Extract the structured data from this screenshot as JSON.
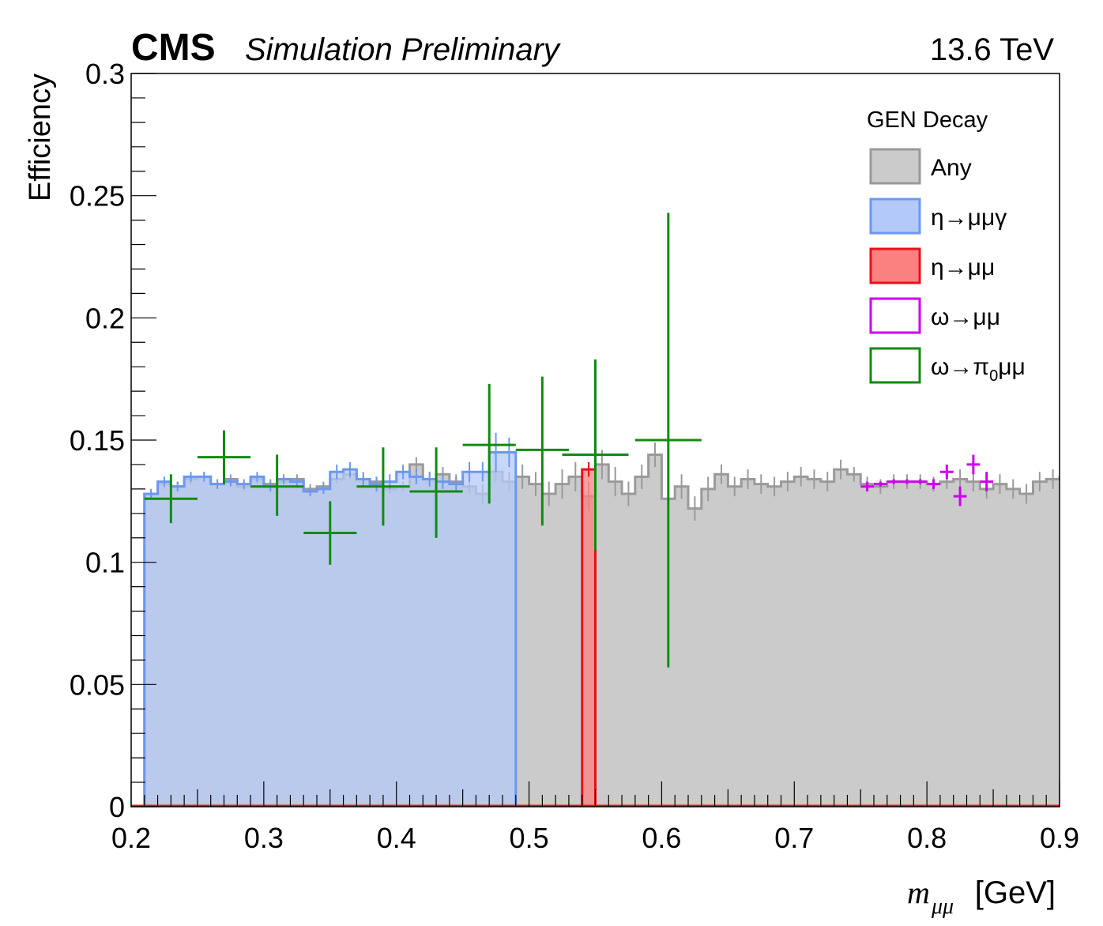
{
  "header": {
    "experiment": "CMS",
    "status": "Simulation Preliminary",
    "energy": "13.6 TeV"
  },
  "chart_data": {
    "type": "histogram",
    "ylabel": "Efficiency",
    "xlabel_symbol": "m",
    "xlabel_subscript": "μμ",
    "xlabel_unit": "[GeV]",
    "xlim": [
      0.2,
      0.9
    ],
    "ylim": [
      0,
      0.3
    ],
    "x_ticks": [
      "0.2",
      "0.3",
      "0.4",
      "0.5",
      "0.6",
      "0.7",
      "0.8",
      "0.9"
    ],
    "y_ticks": [
      "0",
      "0.05",
      "0.1",
      "0.15",
      "0.2",
      "0.25",
      "0.3"
    ],
    "legend": {
      "title": "GEN Decay",
      "position": "top-right",
      "entries": [
        {
          "label": "Any",
          "fill": "#cbcbcb",
          "stroke": "#9a9a9a"
        },
        {
          "label": "η→μμγ",
          "fill": "#b3c9f7",
          "stroke": "#6d97f0"
        },
        {
          "label": "η→μμ",
          "fill": "#fb8080",
          "stroke": "#e8101a"
        },
        {
          "label": "ω→μμ",
          "fill": "#ffffff",
          "stroke": "#cc00ee"
        },
        {
          "label": "ω→π",
          "label_sub": "0",
          "label_tail": "μμ",
          "fill": "#ffffff",
          "stroke": "#128a12"
        }
      ]
    },
    "series": [
      {
        "name": "Any",
        "style": "filled-step",
        "color": "#9a9a9a",
        "fill": "#cbcbcb",
        "x_start": 0.21,
        "bin_width": 0.01,
        "values": [
          0.128,
          0.132,
          0.131,
          0.134,
          0.135,
          0.132,
          0.134,
          0.131,
          0.134,
          0.132,
          0.133,
          0.134,
          0.13,
          0.131,
          0.134,
          0.136,
          0.134,
          0.133,
          0.13,
          0.131,
          0.14,
          0.134,
          0.136,
          0.133,
          0.131,
          0.128,
          0.137,
          0.133,
          0.135,
          0.132,
          0.128,
          0.132,
          0.135,
          0.127,
          0.14,
          0.133,
          0.128,
          0.135,
          0.144,
          0.126,
          0.131,
          0.122,
          0.13,
          0.136,
          0.131,
          0.134,
          0.132,
          0.131,
          0.133,
          0.135,
          0.134,
          0.133,
          0.138,
          0.136,
          0.132,
          0.131,
          0.133,
          0.133,
          0.133,
          0.132,
          0.133,
          0.134,
          0.133,
          0.13,
          0.132,
          0.13,
          0.128,
          0.133,
          0.134,
          0.135,
          0.133
        ],
        "errors": [
          0.002,
          0.002,
          0.002,
          0.002,
          0.002,
          0.002,
          0.002,
          0.002,
          0.002,
          0.002,
          0.002,
          0.002,
          0.002,
          0.002,
          0.002,
          0.002,
          0.002,
          0.002,
          0.002,
          0.002,
          0.003,
          0.003,
          0.003,
          0.003,
          0.003,
          0.004,
          0.004,
          0.004,
          0.005,
          0.005,
          0.005,
          0.006,
          0.006,
          0.006,
          0.006,
          0.006,
          0.005,
          0.005,
          0.005,
          0.005,
          0.005,
          0.005,
          0.005,
          0.004,
          0.004,
          0.004,
          0.004,
          0.004,
          0.004,
          0.004,
          0.004,
          0.004,
          0.004,
          0.003,
          0.003,
          0.003,
          0.003,
          0.003,
          0.003,
          0.003,
          0.003,
          0.004,
          0.004,
          0.004,
          0.004,
          0.004,
          0.004,
          0.004,
          0.004,
          0.004,
          0.004
        ]
      },
      {
        "name": "η→μμγ",
        "style": "filled-step",
        "color": "#6d97f0",
        "fill": "#b3c9f7",
        "x_start": 0.21,
        "bin_width": 0.01,
        "values": [
          0.128,
          0.133,
          0.131,
          0.135,
          0.135,
          0.132,
          0.133,
          0.132,
          0.135,
          0.131,
          0.134,
          0.133,
          0.129,
          0.13,
          0.137,
          0.138,
          0.134,
          0.132,
          0.133,
          0.137,
          0.135,
          0.134,
          0.133,
          0.132,
          0.137,
          0.137,
          0.145,
          0.145
        ],
        "errors": [
          0.002,
          0.002,
          0.002,
          0.002,
          0.002,
          0.002,
          0.002,
          0.002,
          0.002,
          0.002,
          0.002,
          0.002,
          0.002,
          0.002,
          0.003,
          0.003,
          0.003,
          0.003,
          0.003,
          0.003,
          0.003,
          0.003,
          0.003,
          0.003,
          0.004,
          0.004,
          0.008,
          0.006
        ]
      },
      {
        "name": "η→μμ",
        "style": "filled-step",
        "color": "#e8101a",
        "fill": "#fb8080",
        "x_start": 0.54,
        "bin_width": 0.01,
        "values": [
          0.138
        ],
        "errors": [
          0.003
        ]
      },
      {
        "name": "ω→μμ",
        "style": "errorbar",
        "color": "#cc00ee",
        "x": [
          0.755,
          0.765,
          0.775,
          0.785,
          0.795,
          0.805,
          0.815,
          0.825,
          0.835,
          0.845
        ],
        "y": [
          0.131,
          0.132,
          0.133,
          0.133,
          0.133,
          0.132,
          0.137,
          0.127,
          0.14,
          0.133
        ],
        "xerr": 0.005,
        "yerr": [
          0.002,
          0.001,
          0.001,
          0.001,
          0.001,
          0.002,
          0.003,
          0.004,
          0.004,
          0.004
        ]
      },
      {
        "name": "ω→π0μμ",
        "style": "errorbar",
        "color": "#128a12",
        "x": [
          0.23,
          0.27,
          0.31,
          0.35,
          0.39,
          0.43,
          0.47,
          0.51,
          0.55,
          0.605
        ],
        "y": [
          0.126,
          0.143,
          0.131,
          0.112,
          0.131,
          0.129,
          0.148,
          0.146,
          0.144,
          0.15
        ],
        "xerr": [
          0.02,
          0.02,
          0.02,
          0.02,
          0.02,
          0.02,
          0.02,
          0.02,
          0.025,
          0.025
        ],
        "yerr_low": [
          0.01,
          0.011,
          0.012,
          0.013,
          0.016,
          0.019,
          0.024,
          0.031,
          0.039,
          0.093
        ],
        "yerr_high": [
          0.01,
          0.011,
          0.013,
          0.013,
          0.016,
          0.018,
          0.025,
          0.03,
          0.039,
          0.093
        ]
      }
    ]
  }
}
